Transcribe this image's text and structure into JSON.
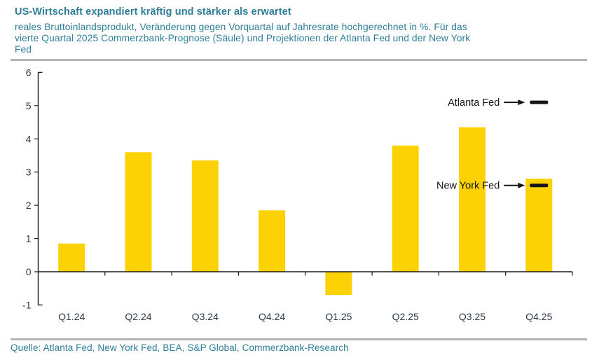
{
  "header": {
    "title": "US-Wirtschaft expandiert kräftig und stärker als erwartet",
    "subtitle_lines": [
      "reales Bruttoinlandsprodukt, Veränderung gegen Vorquartal auf Jahresrate hochgerechnet in %. Für das",
      "vierte Quartal 2025 Commerzbank-Prognose (Säule) und Projektionen der Atlanta Fed und der New York",
      "Fed"
    ]
  },
  "chart_data": {
    "type": "bar",
    "title": "US-Wirtschaft expandiert kräftig und stärker als erwartet",
    "subtitle": "reales Bruttoinlandsprodukt, Veränderung gegen Vorquartal auf Jahresrate hochgerechnet in %. Für das vierte Quartal 2025 Commerzbank-Prognose (Säule) und Projektionen der Atlanta Fed und der New York Fed",
    "categories": [
      "Q1.24",
      "Q2.24",
      "Q3.24",
      "Q4.24",
      "Q1.25",
      "Q2.25",
      "Q3.25",
      "Q4.25"
    ],
    "values": [
      0.85,
      3.6,
      3.35,
      1.85,
      -0.7,
      3.8,
      4.35,
      2.8
    ],
    "xlabel": "",
    "ylabel": "",
    "ylim": [
      -1,
      6
    ],
    "yticks": [
      6,
      5,
      4,
      3,
      2,
      1,
      0,
      -1
    ],
    "grid": false,
    "legend": "none",
    "bar_color": "#FCD205",
    "annotations": [
      {
        "label": "Atlanta Fed",
        "value": 5.1,
        "category_index": 7
      },
      {
        "label": "New York Fed",
        "value": 2.6,
        "category_index": 7
      }
    ]
  },
  "footer": {
    "source": "Quelle: Atlanta Fed, New York Fed, BEA, S&P Global, Commerzbank-Research"
  },
  "colors": {
    "accent_teal": "#2E7E99",
    "bar_yellow": "#FCD205",
    "axis_text": "#2B3A4A",
    "axis_line": "#1A1A1A",
    "annotation_black": "#141414",
    "rule_gray": "#B4B4B4"
  }
}
